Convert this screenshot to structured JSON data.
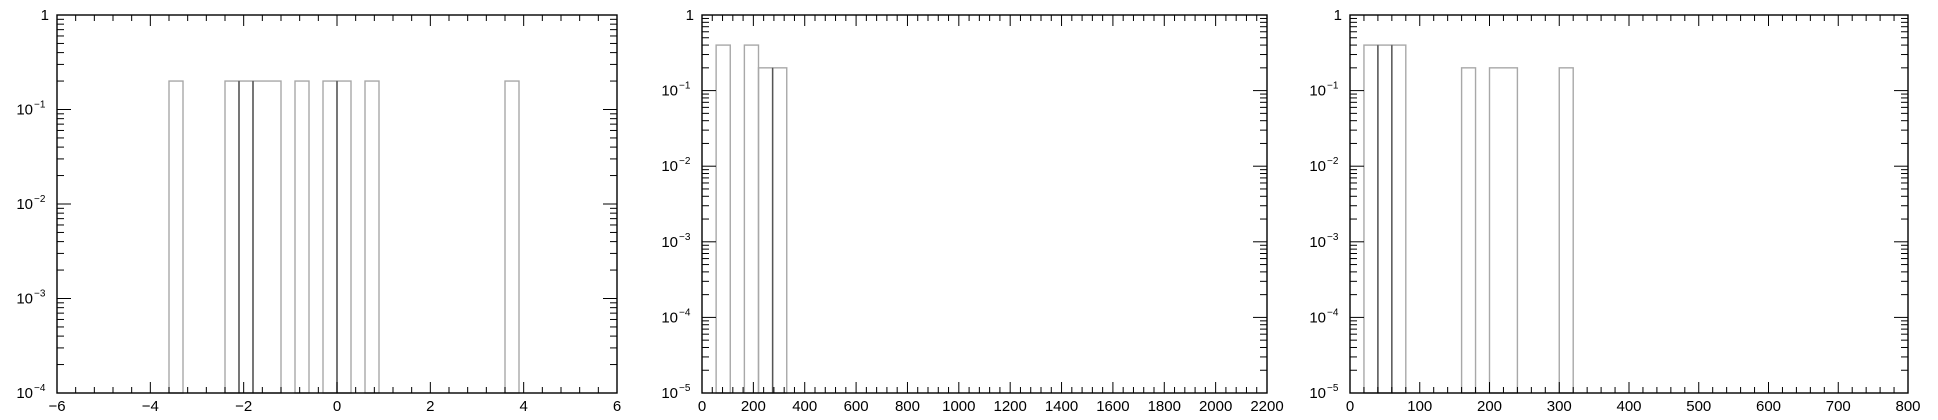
{
  "chart_data": [
    {
      "type": "bar",
      "histogram": true,
      "yscale": "log",
      "xlim": [
        -6,
        6
      ],
      "ylim": [
        0.0001,
        1
      ],
      "xticks": [
        -6,
        -4,
        -2,
        0,
        2,
        4,
        6
      ],
      "xtick_labels": [
        "−6",
        "−4",
        "−2",
        "0",
        "2",
        "4",
        "6"
      ],
      "yticks": [
        0.0001,
        0.001,
        0.01,
        0.1,
        1
      ],
      "ytick_labels": [
        {
          "base": "10",
          "exp": "−4"
        },
        {
          "base": "10",
          "exp": "−3"
        },
        {
          "base": "10",
          "exp": "−2"
        },
        {
          "base": "10",
          "exp": "−1"
        },
        {
          "base": "1",
          "exp": ""
        }
      ],
      "bins": [
        {
          "x0": -3.6,
          "x1": -3.3,
          "value": 0.2
        },
        {
          "x0": -2.4,
          "x1": -2.1,
          "value": 0.2
        },
        {
          "x0": -2.1,
          "x1": -1.8,
          "value": 0.2
        },
        {
          "x0": -1.8,
          "x1": -1.2,
          "value": 0.2
        },
        {
          "x0": -0.9,
          "x1": -0.6,
          "value": 0.2
        },
        {
          "x0": -0.3,
          "x1": 0.0,
          "value": 0.2
        },
        {
          "x0": 0.0,
          "x1": 0.3,
          "value": 0.2
        },
        {
          "x0": 0.6,
          "x1": 0.9,
          "value": 0.2
        },
        {
          "x0": 3.6,
          "x1": 3.9,
          "value": 0.2
        }
      ],
      "dark_edges": [
        -2.1,
        -1.8,
        0.0
      ],
      "grid": false,
      "title": "",
      "xlabel": "",
      "ylabel": ""
    },
    {
      "type": "bar",
      "histogram": true,
      "yscale": "log",
      "xlim": [
        0,
        2200
      ],
      "ylim": [
        1e-05,
        1
      ],
      "xticks": [
        0,
        200,
        400,
        600,
        800,
        1000,
        1200,
        1400,
        1600,
        1800,
        2000,
        2200
      ],
      "xtick_labels": [
        "0",
        "200",
        "400",
        "600",
        "800",
        "1000",
        "1200",
        "1400",
        "1600",
        "1800",
        "2000",
        "2200"
      ],
      "yticks": [
        1e-05,
        0.0001,
        0.001,
        0.01,
        0.1,
        1
      ],
      "ytick_labels": [
        {
          "base": "10",
          "exp": "−5"
        },
        {
          "base": "10",
          "exp": "−4"
        },
        {
          "base": "10",
          "exp": "−3"
        },
        {
          "base": "10",
          "exp": "−2"
        },
        {
          "base": "10",
          "exp": "−1"
        },
        {
          "base": "1",
          "exp": ""
        }
      ],
      "bins": [
        {
          "x0": 55,
          "x1": 110,
          "value": 0.4
        },
        {
          "x0": 165,
          "x1": 220,
          "value": 0.4
        },
        {
          "x0": 220,
          "x1": 275,
          "value": 0.2
        },
        {
          "x0": 275,
          "x1": 330,
          "value": 0.2
        }
      ],
      "dark_edges": [
        275
      ],
      "grid": false,
      "title": "",
      "xlabel": "",
      "ylabel": ""
    },
    {
      "type": "bar",
      "histogram": true,
      "yscale": "log",
      "xlim": [
        0,
        800
      ],
      "ylim": [
        1e-05,
        1
      ],
      "xticks": [
        0,
        100,
        200,
        300,
        400,
        500,
        600,
        700,
        800
      ],
      "xtick_labels": [
        "0",
        "100",
        "200",
        "300",
        "400",
        "500",
        "600",
        "700",
        "800"
      ],
      "yticks": [
        1e-05,
        0.0001,
        0.001,
        0.01,
        0.1,
        1
      ],
      "ytick_labels": [
        {
          "base": "10",
          "exp": "−5"
        },
        {
          "base": "10",
          "exp": "−4"
        },
        {
          "base": "10",
          "exp": "−3"
        },
        {
          "base": "10",
          "exp": "−2"
        },
        {
          "base": "10",
          "exp": "−1"
        },
        {
          "base": "1",
          "exp": ""
        }
      ],
      "bins": [
        {
          "x0": 20,
          "x1": 40,
          "value": 0.4
        },
        {
          "x0": 40,
          "x1": 60,
          "value": 0.4
        },
        {
          "x0": 60,
          "x1": 80,
          "value": 0.4
        },
        {
          "x0": 160,
          "x1": 180,
          "value": 0.2
        },
        {
          "x0": 200,
          "x1": 240,
          "value": 0.2
        },
        {
          "x0": 300,
          "x1": 320,
          "value": 0.2
        }
      ],
      "dark_edges": [
        40,
        60
      ],
      "grid": false,
      "title": "",
      "xlabel": "",
      "ylabel": ""
    }
  ]
}
